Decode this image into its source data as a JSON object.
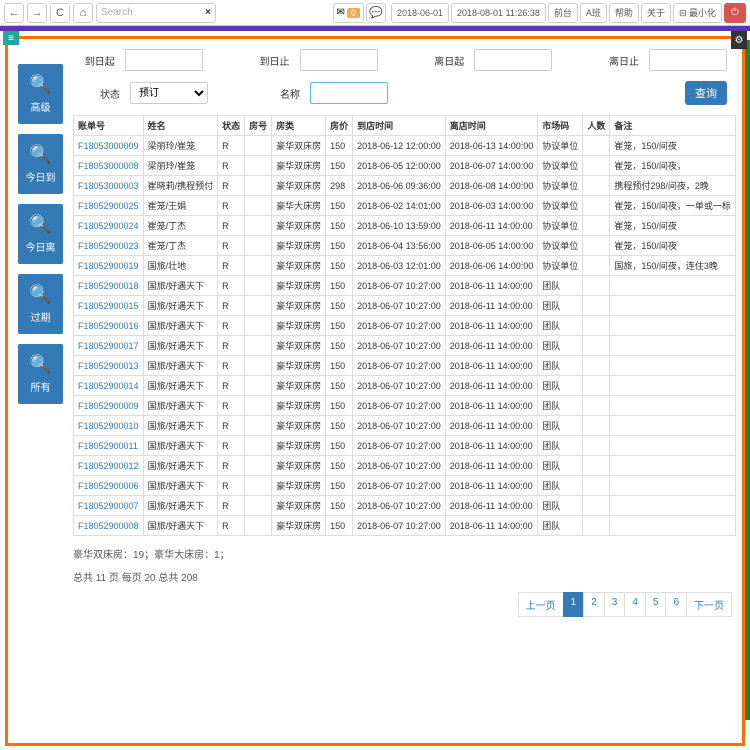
{
  "toolbar": {
    "search_placeholder": "Search",
    "badge_count": "0",
    "date1": "2018-06-01",
    "datetime": "2018-08-01 11:26:38",
    "front": "前台",
    "shift": "A班",
    "help": "帮助",
    "about": "关于",
    "minimize": "⊟ 最小化"
  },
  "sidebar": [
    {
      "label": "高级"
    },
    {
      "label": "今日到"
    },
    {
      "label": "今日离"
    },
    {
      "label": "过期"
    },
    {
      "label": "所有"
    }
  ],
  "filters": {
    "arrive_from": "到日起",
    "arrive_to": "到日止",
    "leave_from": "离日起",
    "leave_to": "离日止",
    "status": "状态",
    "status_val": "预订",
    "name": "名称",
    "query": "查询"
  },
  "columns": [
    "账单号",
    "姓名",
    "状态",
    "房号",
    "房类",
    "房价",
    "到店时间",
    "离店时间",
    "市场码",
    "人数",
    "备注"
  ],
  "rows": [
    [
      "F18053000009",
      "梁丽玲/崔笼",
      "R",
      "",
      "豪华双床房",
      "150",
      "2018-06-12 12:00:00",
      "2018-06-13 14:00:00",
      "协议单位",
      "",
      "崔笼，150/间夜"
    ],
    [
      "F18053000008",
      "梁丽玲/崔笼",
      "R",
      "",
      "豪华双床房",
      "150",
      "2018-06-05 12:00:00",
      "2018-06-07 14:00:00",
      "协议单位",
      "",
      "崔笼，150/间夜，"
    ],
    [
      "F18053000003",
      "崔晓莉/携程预付",
      "R",
      "",
      "豪华双床房",
      "298",
      "2018-06-06 09:36:00",
      "2018-06-08 14:00:00",
      "协议单位",
      "",
      "携程预付298/间夜，2晚"
    ],
    [
      "F18052900025",
      "崔笼/王娟",
      "R",
      "",
      "豪华大床房",
      "150",
      "2018-06-02 14:01:00",
      "2018-06-03 14:00:00",
      "协议单位",
      "",
      "崔笼，150/间夜，一单或一标"
    ],
    [
      "F18052900024",
      "崔笼/丁杰",
      "R",
      "",
      "豪华双床房",
      "150",
      "2018-06-10 13:59:00",
      "2018-06-11 14:00:00",
      "协议单位",
      "",
      "崔笼，150/间夜"
    ],
    [
      "F18052900023",
      "崔笼/丁杰",
      "R",
      "",
      "豪华双床房",
      "150",
      "2018-06-04 13:56:00",
      "2018-06-05 14:00:00",
      "协议单位",
      "",
      "崔笼，150/间夜"
    ],
    [
      "F18052900019",
      "国旅/壮地",
      "R",
      "",
      "豪华双床房",
      "150",
      "2018-06-03 12:01:00",
      "2018-06-06 14:00:00",
      "协议单位",
      "",
      "国旅，150/间夜，连住3晚"
    ],
    [
      "F18052900018",
      "国旅/好遇天下",
      "R",
      "",
      "豪华双床房",
      "150",
      "2018-06-07 10:27:00",
      "2018-06-11 14:00:00",
      "团队",
      "",
      ""
    ],
    [
      "F18052900015",
      "国旅/好遇天下",
      "R",
      "",
      "豪华双床房",
      "150",
      "2018-06-07 10:27:00",
      "2018-06-11 14:00:00",
      "团队",
      "",
      ""
    ],
    [
      "F18052900016",
      "国旅/好遇天下",
      "R",
      "",
      "豪华双床房",
      "150",
      "2018-06-07 10:27:00",
      "2018-06-11 14:00:00",
      "团队",
      "",
      ""
    ],
    [
      "F18052900017",
      "国旅/好遇天下",
      "R",
      "",
      "豪华双床房",
      "150",
      "2018-06-07 10:27:00",
      "2018-06-11 14:00:00",
      "团队",
      "",
      ""
    ],
    [
      "F18052900013",
      "国旅/好遇天下",
      "R",
      "",
      "豪华双床房",
      "150",
      "2018-06-07 10:27:00",
      "2018-06-11 14:00:00",
      "团队",
      "",
      ""
    ],
    [
      "F18052900014",
      "国旅/好遇天下",
      "R",
      "",
      "豪华双床房",
      "150",
      "2018-06-07 10:27:00",
      "2018-06-11 14:00:00",
      "团队",
      "",
      ""
    ],
    [
      "F18052900009",
      "国旅/好遇天下",
      "R",
      "",
      "豪华双床房",
      "150",
      "2018-06-07 10:27:00",
      "2018-06-11 14:00:00",
      "团队",
      "",
      ""
    ],
    [
      "F18052900010",
      "国旅/好遇天下",
      "R",
      "",
      "豪华双床房",
      "150",
      "2018-06-07 10:27:00",
      "2018-06-11 14:00:00",
      "团队",
      "",
      ""
    ],
    [
      "F18052900011",
      "国旅/好遇天下",
      "R",
      "",
      "豪华双床房",
      "150",
      "2018-06-07 10:27:00",
      "2018-06-11 14:00:00",
      "团队",
      "",
      ""
    ],
    [
      "F18052900012",
      "国旅/好遇天下",
      "R",
      "",
      "豪华双床房",
      "150",
      "2018-06-07 10:27:00",
      "2018-06-11 14:00:00",
      "团队",
      "",
      ""
    ],
    [
      "F18052900006",
      "国旅/好遇天下",
      "R",
      "",
      "豪华双床房",
      "150",
      "2018-06-07 10:27:00",
      "2018-06-11 14:00:00",
      "团队",
      "",
      ""
    ],
    [
      "F18052900007",
      "国旅/好遇天下",
      "R",
      "",
      "豪华双床房",
      "150",
      "2018-06-07 10:27:00",
      "2018-06-11 14:00:00",
      "团队",
      "",
      ""
    ],
    [
      "F18052900008",
      "国旅/好遇天下",
      "R",
      "",
      "豪华双床房",
      "150",
      "2018-06-07 10:27:00",
      "2018-06-11 14:00:00",
      "团队",
      "",
      ""
    ]
  ],
  "summary": "豪华双床房：19；豪华大床房：1；",
  "total": "总共 11 页 每页 20 总共 208",
  "pager": {
    "prev": "上一页",
    "pages": [
      "1",
      "2",
      "3",
      "4",
      "5",
      "6"
    ],
    "next": "下一页",
    "active": 0
  }
}
